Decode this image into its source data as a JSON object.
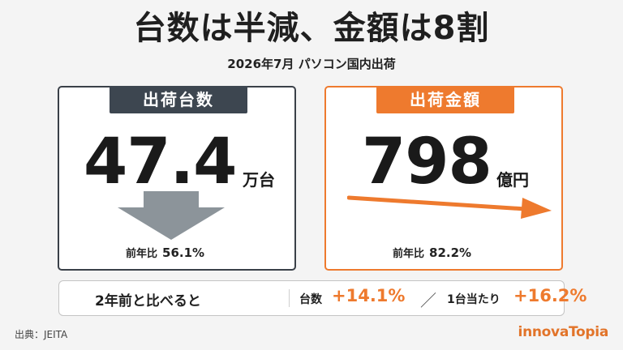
{
  "title": "台数は半減、金額は8割",
  "subtitle": "2026年7月 パソコン国内出荷",
  "units_card": {
    "label": "出荷台数",
    "value": "47.4",
    "unit": "万台",
    "yoy_label": "前年比",
    "yoy_value": "56.1%"
  },
  "amount_card": {
    "label": "出荷金額",
    "value": "798",
    "unit": "億円",
    "yoy_label": "前年比",
    "yoy_value": "82.2%"
  },
  "comparison": {
    "label": "2年前と比べると",
    "units_label": "台数",
    "units_change": "+14.1%",
    "separator": "／",
    "per_unit_label": "1台当たり",
    "per_unit_change": "+16.2%"
  },
  "source": "出典：JEITA",
  "logo": "innovaTopia",
  "colors": {
    "accent": "#ee7a2e",
    "dark": "#3d4650",
    "arrow_gray": "#8c949a"
  }
}
